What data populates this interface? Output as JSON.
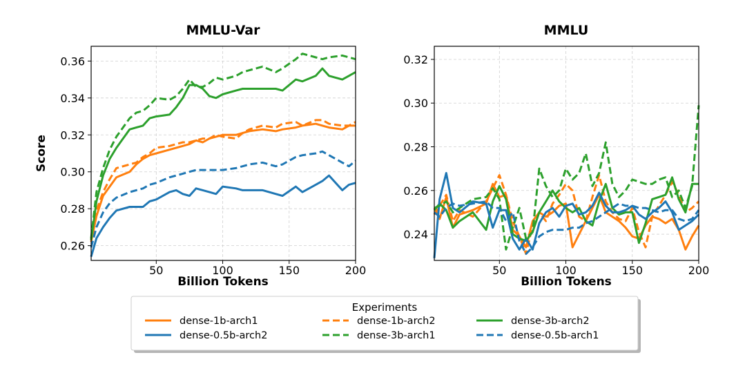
{
  "colors": {
    "orange": "#ff7f0e",
    "green": "#2ca02c",
    "blue": "#1f77b4"
  },
  "legend": {
    "title": "Experiments",
    "position": "bottom-center"
  },
  "chart_data": [
    {
      "type": "line",
      "title": "MMLU-Var",
      "xlabel": "Billion Tokens",
      "ylabel": "Score",
      "xlim": [
        1,
        200
      ],
      "ylim": [
        0.252,
        0.368
      ],
      "xticks": [
        50,
        100,
        150,
        200
      ],
      "yticks": [
        0.26,
        0.28,
        0.3,
        0.32,
        0.34,
        0.36
      ],
      "ytick_labels": [
        "0.26",
        "0.28",
        "0.30",
        "0.32",
        "0.34",
        "0.36"
      ],
      "grid": true,
      "x": [
        1,
        5,
        10,
        15,
        20,
        30,
        35,
        40,
        45,
        50,
        60,
        65,
        70,
        75,
        80,
        85,
        90,
        95,
        100,
        110,
        115,
        120,
        130,
        140,
        145,
        155,
        160,
        170,
        175,
        180,
        190,
        195,
        200
      ],
      "series": [
        {
          "name": "dense-1b-arch1",
          "color": "orange",
          "dash": "solid",
          "values": [
            0.262,
            0.276,
            0.287,
            0.292,
            0.297,
            0.3,
            0.304,
            0.307,
            0.309,
            0.31,
            0.312,
            0.313,
            0.314,
            0.315,
            0.317,
            0.316,
            0.318,
            0.319,
            0.32,
            0.32,
            0.321,
            0.322,
            0.323,
            0.322,
            0.323,
            0.324,
            0.325,
            0.326,
            0.325,
            0.324,
            0.323,
            0.325,
            0.325
          ]
        },
        {
          "name": "dense-1b-arch2",
          "color": "orange",
          "dash": "dashed",
          "values": [
            0.263,
            0.279,
            0.289,
            0.296,
            0.302,
            0.304,
            0.305,
            0.308,
            0.31,
            0.313,
            0.314,
            0.315,
            0.316,
            0.316,
            0.317,
            0.318,
            0.318,
            0.32,
            0.319,
            0.318,
            0.321,
            0.323,
            0.325,
            0.324,
            0.326,
            0.327,
            0.325,
            0.328,
            0.328,
            0.326,
            0.325,
            0.325,
            0.327
          ]
        },
        {
          "name": "dense-3b-arch2",
          "color": "green",
          "dash": "solid",
          "values": [
            0.263,
            0.284,
            0.298,
            0.307,
            0.313,
            0.323,
            0.324,
            0.325,
            0.329,
            0.33,
            0.331,
            0.335,
            0.34,
            0.347,
            0.347,
            0.345,
            0.341,
            0.34,
            0.342,
            0.344,
            0.345,
            0.345,
            0.345,
            0.345,
            0.344,
            0.35,
            0.349,
            0.352,
            0.356,
            0.352,
            0.35,
            0.352,
            0.354
          ]
        },
        {
          "name": "dense-0.5b-arch2",
          "color": "blue",
          "dash": "solid",
          "values": [
            0.254,
            0.264,
            0.27,
            0.275,
            0.279,
            0.281,
            0.281,
            0.281,
            0.284,
            0.285,
            0.289,
            0.29,
            0.288,
            0.287,
            0.291,
            0.29,
            0.289,
            0.288,
            0.292,
            0.291,
            0.29,
            0.29,
            0.29,
            0.288,
            0.287,
            0.292,
            0.289,
            0.293,
            0.295,
            0.298,
            0.29,
            0.293,
            0.294
          ]
        },
        {
          "name": "dense-3b-arch1",
          "color": "green",
          "dash": "dashed",
          "values": [
            0.264,
            0.289,
            0.302,
            0.312,
            0.319,
            0.329,
            0.332,
            0.333,
            0.336,
            0.34,
            0.339,
            0.341,
            0.345,
            0.35,
            0.346,
            0.346,
            0.348,
            0.351,
            0.35,
            0.352,
            0.354,
            0.355,
            0.357,
            0.354,
            0.356,
            0.361,
            0.364,
            0.362,
            0.361,
            0.362,
            0.363,
            0.362,
            0.361
          ]
        },
        {
          "name": "dense-0.5b-arch1",
          "color": "blue",
          "dash": "dashed",
          "values": [
            0.259,
            0.27,
            0.278,
            0.283,
            0.286,
            0.289,
            0.29,
            0.291,
            0.293,
            0.294,
            0.297,
            0.298,
            0.299,
            0.3,
            0.301,
            0.301,
            0.301,
            0.301,
            0.301,
            0.302,
            0.303,
            0.304,
            0.305,
            0.303,
            0.304,
            0.308,
            0.309,
            0.31,
            0.311,
            0.309,
            0.305,
            0.303,
            0.306
          ]
        }
      ]
    },
    {
      "type": "line",
      "title": "MMLU",
      "xlabel": "Billion Tokens",
      "ylabel": "",
      "xlim": [
        1,
        200
      ],
      "ylim": [
        0.228,
        0.326
      ],
      "xticks": [
        50,
        100,
        150,
        200
      ],
      "yticks": [
        0.24,
        0.26,
        0.28,
        0.3,
        0.32
      ],
      "ytick_labels": [
        "0.24",
        "0.26",
        "0.28",
        "0.30",
        "0.32"
      ],
      "grid": true,
      "x": [
        1,
        5,
        10,
        15,
        20,
        30,
        40,
        45,
        50,
        55,
        60,
        65,
        70,
        75,
        80,
        85,
        90,
        95,
        100,
        105,
        110,
        115,
        120,
        125,
        130,
        135,
        140,
        145,
        150,
        155,
        160,
        165,
        170,
        175,
        180,
        185,
        190,
        195,
        200
      ],
      "series": [
        {
          "name": "dense-1b-arch1",
          "color": "orange",
          "dash": "solid",
          "values": [
            0.252,
            0.247,
            0.257,
            0.243,
            0.249,
            0.251,
            0.254,
            0.263,
            0.257,
            0.258,
            0.242,
            0.239,
            0.234,
            0.246,
            0.25,
            0.248,
            0.25,
            0.253,
            0.254,
            0.234,
            0.24,
            0.246,
            0.252,
            0.258,
            0.25,
            0.248,
            0.246,
            0.243,
            0.239,
            0.238,
            0.244,
            0.248,
            0.247,
            0.245,
            0.247,
            0.242,
            0.233,
            0.239,
            0.244
          ]
        },
        {
          "name": "dense-1b-arch2",
          "color": "orange",
          "dash": "dashed",
          "values": [
            0.249,
            0.253,
            0.258,
            0.246,
            0.251,
            0.248,
            0.255,
            0.261,
            0.267,
            0.258,
            0.246,
            0.239,
            0.231,
            0.244,
            0.25,
            0.246,
            0.254,
            0.258,
            0.263,
            0.26,
            0.248,
            0.246,
            0.257,
            0.267,
            0.255,
            0.25,
            0.247,
            0.246,
            0.252,
            0.241,
            0.234,
            0.248,
            0.253,
            0.258,
            0.264,
            0.258,
            0.25,
            0.252,
            0.255
          ]
        },
        {
          "name": "dense-3b-arch2",
          "color": "green",
          "dash": "solid",
          "values": [
            0.251,
            0.254,
            0.251,
            0.243,
            0.246,
            0.25,
            0.242,
            0.255,
            0.262,
            0.256,
            0.24,
            0.238,
            0.237,
            0.241,
            0.25,
            0.255,
            0.26,
            0.255,
            0.252,
            0.25,
            0.252,
            0.246,
            0.244,
            0.255,
            0.263,
            0.252,
            0.249,
            0.25,
            0.25,
            0.236,
            0.245,
            0.256,
            0.257,
            0.258,
            0.266,
            0.256,
            0.25,
            0.263,
            0.263
          ]
        },
        {
          "name": "dense-0.5b-arch2",
          "color": "blue",
          "dash": "solid",
          "values": [
            0.229,
            0.256,
            0.268,
            0.252,
            0.25,
            0.255,
            0.254,
            0.243,
            0.251,
            0.251,
            0.238,
            0.233,
            0.238,
            0.233,
            0.245,
            0.25,
            0.252,
            0.248,
            0.253,
            0.254,
            0.249,
            0.25,
            0.253,
            0.259,
            0.253,
            0.25,
            0.25,
            0.251,
            0.253,
            0.249,
            0.247,
            0.25,
            0.252,
            0.255,
            0.25,
            0.242,
            0.244,
            0.246,
            0.249
          ]
        },
        {
          "name": "dense-3b-arch1",
          "color": "green",
          "dash": "dashed",
          "values": [
            0.252,
            0.253,
            0.255,
            0.25,
            0.252,
            0.256,
            0.257,
            0.261,
            0.256,
            0.233,
            0.243,
            0.252,
            0.238,
            0.241,
            0.27,
            0.262,
            0.257,
            0.26,
            0.27,
            0.265,
            0.268,
            0.277,
            0.262,
            0.268,
            0.282,
            0.263,
            0.257,
            0.26,
            0.265,
            0.264,
            0.263,
            0.263,
            0.265,
            0.266,
            0.257,
            0.26,
            0.252,
            0.262,
            0.299
          ]
        },
        {
          "name": "dense-0.5b-arch1",
          "color": "blue",
          "dash": "dashed",
          "values": [
            0.25,
            0.248,
            0.252,
            0.254,
            0.253,
            0.254,
            0.255,
            0.252,
            0.252,
            0.246,
            0.25,
            0.237,
            0.231,
            0.234,
            0.239,
            0.241,
            0.242,
            0.242,
            0.242,
            0.243,
            0.243,
            0.245,
            0.246,
            0.248,
            0.25,
            0.252,
            0.254,
            0.253,
            0.253,
            0.252,
            0.252,
            0.251,
            0.25,
            0.251,
            0.251,
            0.247,
            0.246,
            0.247,
            0.251
          ]
        }
      ]
    }
  ]
}
